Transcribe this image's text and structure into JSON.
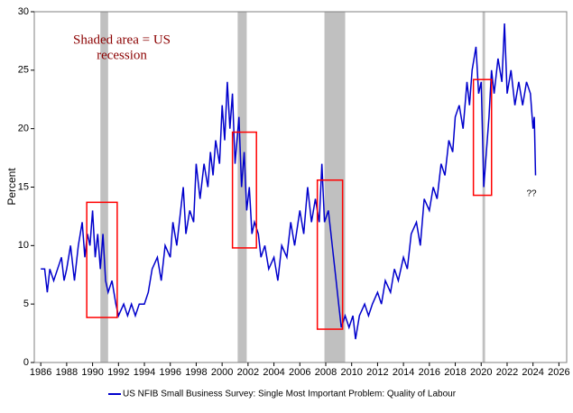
{
  "chart_data": {
    "type": "line",
    "y_label": "Percent",
    "annotations": [
      "Shaded area = US",
      "recession",
      "??"
    ],
    "xlim": [
      1985.5,
      2026.6
    ],
    "ylim": [
      0,
      30
    ],
    "xticks": [
      1986,
      1988,
      1990,
      1992,
      1994,
      1996,
      1998,
      2000,
      2002,
      2004,
      2006,
      2008,
      2010,
      2012,
      2014,
      2016,
      2018,
      2020,
      2022,
      2024,
      2026
    ],
    "yticks": [
      0,
      5,
      10,
      15,
      20,
      25,
      30
    ],
    "shade_color": "#c0c0c0",
    "shaded_periods": [
      [
        1990.6,
        1991.2
      ],
      [
        2001.2,
        2001.9
      ],
      [
        2007.9,
        2009.5
      ],
      [
        2020.1,
        2020.3
      ]
    ],
    "box_color": "#ff0000",
    "highlight_boxes": [
      [
        1989.55,
        1991.9,
        3.85,
        13.7
      ],
      [
        2000.8,
        2002.65,
        9.8,
        19.7
      ],
      [
        2007.35,
        2009.3,
        2.85,
        15.6
      ],
      [
        2019.4,
        2020.8,
        14.3,
        24.2
      ]
    ],
    "series": [
      {
        "name": "US NFIB Small Business Survey: Single Most Important Problem: Quality of Labour",
        "color": "#0000cc",
        "x": [
          1986.0,
          1986.3,
          1986.5,
          1986.7,
          1987.0,
          1987.3,
          1987.6,
          1987.8,
          1988.0,
          1988.3,
          1988.6,
          1988.9,
          1989.2,
          1989.4,
          1989.6,
          1989.8,
          1990.0,
          1990.2,
          1990.4,
          1990.6,
          1990.8,
          1991.0,
          1991.2,
          1991.5,
          1991.8,
          1992.0,
          1992.4,
          1992.7,
          1993.0,
          1993.3,
          1993.6,
          1994.0,
          1994.3,
          1994.6,
          1995.0,
          1995.3,
          1995.6,
          1996.0,
          1996.2,
          1996.5,
          1996.8,
          1997.0,
          1997.2,
          1997.5,
          1997.8,
          1998.0,
          1998.3,
          1998.6,
          1998.9,
          1999.1,
          1999.3,
          1999.5,
          1999.8,
          2000.0,
          2000.2,
          2000.4,
          2000.6,
          2000.8,
          2001.0,
          2001.3,
          2001.5,
          2001.7,
          2001.9,
          2002.1,
          2002.3,
          2002.5,
          2002.8,
          2003.0,
          2003.3,
          2003.6,
          2004.0,
          2004.3,
          2004.6,
          2005.0,
          2005.3,
          2005.6,
          2006.0,
          2006.3,
          2006.6,
          2006.9,
          2007.2,
          2007.5,
          2007.7,
          2007.9,
          2008.2,
          2008.5,
          2008.8,
          2009.0,
          2009.2,
          2009.5,
          2009.8,
          2010.1,
          2010.3,
          2010.6,
          2011.0,
          2011.3,
          2011.6,
          2012.0,
          2012.3,
          2012.6,
          2013.0,
          2013.3,
          2013.6,
          2014.0,
          2014.3,
          2014.6,
          2015.0,
          2015.3,
          2015.6,
          2016.0,
          2016.3,
          2016.6,
          2016.9,
          2017.2,
          2017.5,
          2017.8,
          2018.0,
          2018.3,
          2018.6,
          2018.9,
          2019.1,
          2019.3,
          2019.6,
          2019.8,
          2020.0,
          2020.2,
          2020.4,
          2020.6,
          2020.8,
          2021.0,
          2021.3,
          2021.6,
          2021.8,
          2022.0,
          2022.3,
          2022.6,
          2022.9,
          2023.2,
          2023.5,
          2023.8,
          2024.0,
          2024.1,
          2024.2
        ],
        "values": [
          8,
          8,
          6,
          8,
          7,
          8,
          9,
          7,
          8,
          10,
          7,
          10,
          12,
          9,
          11,
          10,
          13,
          9,
          11,
          8,
          11,
          7,
          6,
          7,
          5,
          4,
          5,
          4,
          5,
          4,
          5,
          5,
          6,
          8,
          9,
          7,
          10,
          9,
          12,
          10,
          13,
          15,
          11,
          13,
          12,
          17,
          14,
          17,
          15,
          18,
          16,
          19,
          17,
          22,
          19,
          24,
          20,
          23,
          17,
          21,
          15,
          18,
          13,
          15,
          11,
          12,
          11,
          9,
          10,
          8,
          9,
          7,
          10,
          9,
          12,
          10,
          13,
          11,
          15,
          12,
          14,
          12,
          17,
          12,
          13,
          10,
          7,
          5,
          3,
          4,
          3,
          4,
          2,
          4,
          5,
          4,
          5,
          6,
          5,
          7,
          6,
          8,
          7,
          9,
          8,
          11,
          12,
          10,
          14,
          13,
          15,
          14,
          17,
          16,
          19,
          18,
          21,
          22,
          20,
          24,
          22,
          25,
          27,
          23,
          24,
          15,
          18,
          21,
          25,
          23,
          26,
          24,
          29,
          23,
          25,
          22,
          24,
          22,
          24,
          23,
          20,
          21,
          16
        ]
      }
    ]
  }
}
